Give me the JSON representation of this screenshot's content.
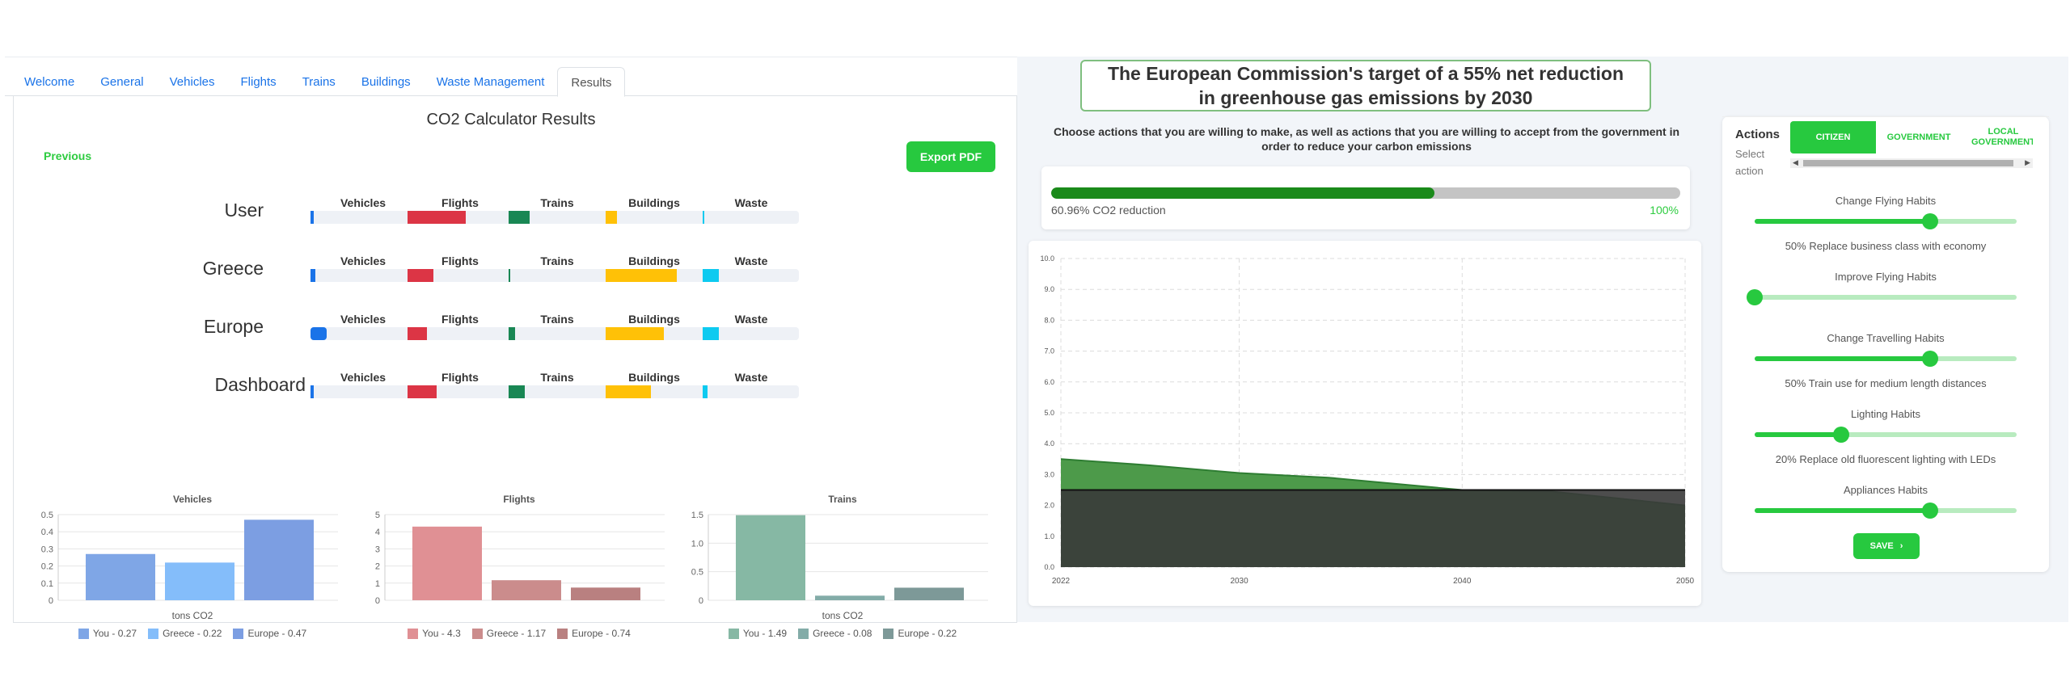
{
  "tabs": [
    "Welcome",
    "General",
    "Vehicles",
    "Flights",
    "Trains",
    "Buildings",
    "Waste Management",
    "Results"
  ],
  "active_tab": "Results",
  "results": {
    "title": "CO2 Calculator Results",
    "previous_label": "Previous",
    "export_label": "Export PDF",
    "segment_labels": [
      "Vehicles",
      "Flights",
      "Trains",
      "Buildings",
      "Waste"
    ],
    "colors": {
      "vehicles": "#1a73e8",
      "flights": "#dc3545",
      "trains": "#198754",
      "buildings": "#ffc107",
      "waste": "#0dcaf0"
    },
    "rows": [
      {
        "label": "User"
      },
      {
        "label": "Greece"
      },
      {
        "label": "Europe"
      },
      {
        "label": "Dashboard"
      }
    ]
  },
  "chart_data": [
    {
      "type": "bar",
      "title": "Vehicles",
      "xlabel": "tons CO2",
      "yticks": [
        "0.5",
        "0.4",
        "0.3",
        "0.2",
        "0.1",
        "0"
      ],
      "ylim": [
        0,
        0.5
      ],
      "series": [
        {
          "name": "You - 0.27",
          "value": 0.27,
          "color": "#7fa6e6"
        },
        {
          "name": "Greece - 0.22",
          "value": 0.22,
          "color": "#84bdfa"
        },
        {
          "name": "Europe - 0.47",
          "value": 0.47,
          "color": "#7c9ee2"
        }
      ]
    },
    {
      "type": "bar",
      "title": "Flights",
      "xlabel": "",
      "yticks": [
        "5",
        "4",
        "3",
        "2",
        "1",
        "0"
      ],
      "ylim": [
        0,
        5
      ],
      "series": [
        {
          "name": "You - 4.3",
          "value": 4.3,
          "color": "#e09094"
        },
        {
          "name": "Greece - 1.17",
          "value": 1.17,
          "color": "#cb8c8c"
        },
        {
          "name": "Europe - 0.74",
          "value": 0.74,
          "color": "#b98080"
        }
      ]
    },
    {
      "type": "bar",
      "title": "Trains",
      "xlabel": "tons CO2",
      "yticks": [
        "1.5",
        "1.0",
        "0.5",
        "0"
      ],
      "ylim": [
        0,
        1.5
      ],
      "series": [
        {
          "name": "You - 1.49",
          "value": 1.49,
          "color": "#86b8a4"
        },
        {
          "name": "Greece - 0.08",
          "value": 0.08,
          "color": "#83aca8"
        },
        {
          "name": "Europe - 0.22",
          "value": 0.22,
          "color": "#7d9998"
        }
      ]
    },
    {
      "type": "area",
      "title": "",
      "x": [
        "2022",
        "2030",
        "2040",
        "2050"
      ],
      "yticks": [
        "10.0",
        "9.0",
        "8.0",
        "7.0",
        "6.0",
        "5.0",
        "4.0",
        "3.0",
        "2.0",
        "1.0",
        "0.0"
      ],
      "ylim": [
        0,
        10
      ],
      "grid": true,
      "series": [
        {
          "points": [
            [
              2022,
              3.5
            ],
            [
              2026,
              3.3
            ],
            [
              2030,
              3.05
            ],
            [
              2034,
              2.9
            ],
            [
              2040,
              2.5
            ],
            [
              2044,
              2.45
            ],
            [
              2050,
              2.0
            ]
          ],
          "color": "#4d9a4a"
        },
        {
          "points": [
            [
              2022,
              2.5
            ],
            [
              2050,
              2.5
            ]
          ],
          "color": "#3a3a3a"
        }
      ]
    }
  ],
  "target_banner": "The European Commission's target of a 55% net reduction in greenhouse gas emissions by 2030",
  "choose_text": "Choose actions that you are willing to make, as well as actions that you are willing to accept from the government in order to reduce your carbon emissions",
  "progress": {
    "label": "60.96% CO2 reduction",
    "value": 0.6096,
    "max_label": "100%"
  },
  "actions": {
    "title": "Actions",
    "subtitle": "Select action",
    "tabs": [
      "CITIZEN",
      "GOVERNMENT",
      "LOCAL GOVERNMENT"
    ],
    "active_tab": "CITIZEN",
    "sliders": [
      {
        "label": "Change Flying Habits",
        "value": 0.67,
        "desc": "50% Replace business class with economy"
      },
      {
        "label": "Improve Flying Habits",
        "value": 0.0,
        "desc": ""
      },
      {
        "label": "Change Travelling Habits",
        "value": 0.67,
        "desc": "50% Train use for medium length distances"
      },
      {
        "label": "Lighting Habits",
        "value": 0.33,
        "desc": "20% Replace old fluorescent lighting with LEDs"
      },
      {
        "label": "Appliances Habits",
        "value": 0.67,
        "desc": ""
      }
    ],
    "save_label": "SAVE",
    "save_icon": "chevron-right-icon"
  }
}
